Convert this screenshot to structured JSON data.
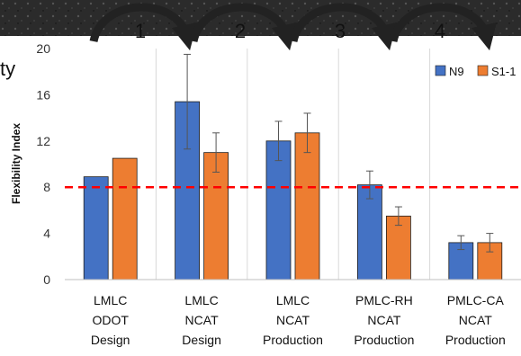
{
  "partial_title": "ty",
  "steps": [
    "1",
    "2",
    "3",
    "4"
  ],
  "chart_data": {
    "type": "bar",
    "ylabel": "Flexibility Index",
    "ylim": [
      0,
      20
    ],
    "yticks": [
      0,
      4,
      8,
      12,
      16,
      20
    ],
    "grid": false,
    "legend_position": "top-right",
    "threshold": 8,
    "threshold_color": "#ff0000",
    "categories": [
      [
        "LMLC",
        "ODOT",
        "Design"
      ],
      [
        "LMLC",
        "NCAT",
        "Design"
      ],
      [
        "LMLC",
        "NCAT",
        "Production"
      ],
      [
        "PMLC-RH",
        "NCAT",
        "Production"
      ],
      [
        "PMLC-CA",
        "NCAT",
        "Production"
      ]
    ],
    "series": [
      {
        "name": "N9",
        "color": "#4472c4",
        "values": [
          8.9,
          15.4,
          12.0,
          8.2,
          3.2
        ],
        "errors": [
          0,
          4.1,
          1.7,
          1.2,
          0.6
        ]
      },
      {
        "name": "S1-1",
        "color": "#ed7d31",
        "values": [
          10.5,
          11.0,
          12.7,
          5.5,
          3.2
        ],
        "errors": [
          0,
          1.7,
          1.7,
          0.8,
          0.8
        ]
      }
    ]
  }
}
